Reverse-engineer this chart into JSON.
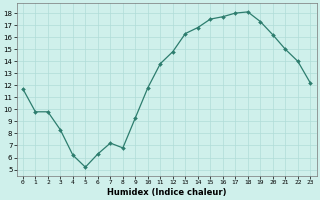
{
  "x": [
    0,
    1,
    2,
    3,
    4,
    5,
    6,
    7,
    8,
    9,
    10,
    11,
    12,
    13,
    14,
    15,
    16,
    17,
    18,
    19,
    20,
    21,
    22,
    23
  ],
  "y": [
    11.7,
    9.8,
    9.8,
    8.3,
    6.2,
    5.2,
    6.3,
    7.2,
    6.8,
    9.3,
    11.8,
    13.8,
    14.8,
    16.3,
    16.8,
    17.5,
    17.7,
    18.0,
    18.1,
    17.3,
    16.2,
    15.0,
    14.0,
    12.2
  ],
  "x_labels": [
    "0",
    "1",
    "2",
    "3",
    "4",
    "5",
    "6",
    "7",
    "8",
    "9",
    "10",
    "11",
    "12",
    "13",
    "14",
    "15",
    "16",
    "17",
    "18",
    "19",
    "20",
    "21",
    "22",
    "23"
  ],
  "xlabel": "Humidex (Indice chaleur)",
  "ylabel_ticks": [
    5,
    6,
    7,
    8,
    9,
    10,
    11,
    12,
    13,
    14,
    15,
    16,
    17,
    18
  ],
  "ylim": [
    4.5,
    18.8
  ],
  "xlim": [
    -0.5,
    23.5
  ],
  "line_color": "#2d7d6e",
  "marker_color": "#2d7d6e",
  "bg_color": "#cff0eb",
  "grid_color": "#b0ddd8"
}
